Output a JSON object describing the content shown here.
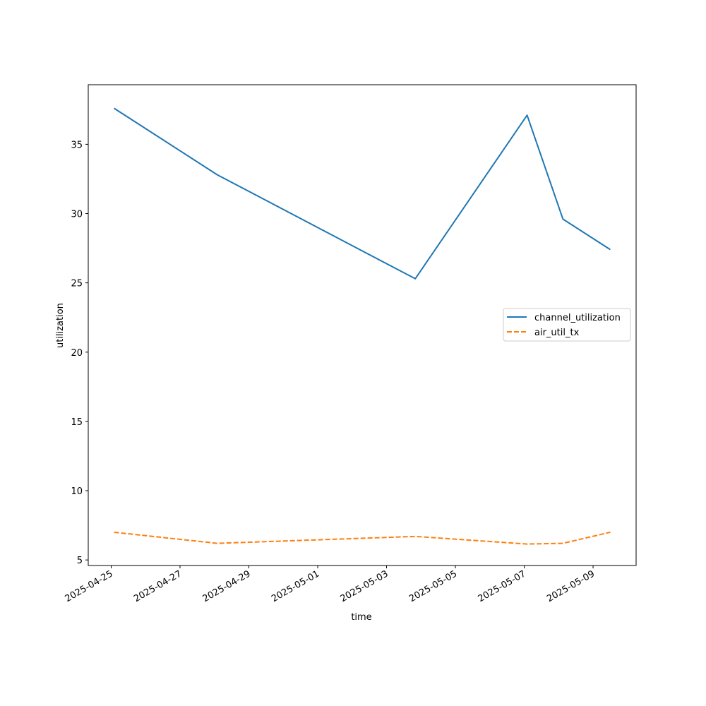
{
  "chart_data": {
    "type": "line",
    "xlabel": "time",
    "ylabel": "utilization",
    "x_tick_labels": [
      "2025-04-25",
      "2025-04-27",
      "2025-04-29",
      "2025-05-01",
      "2025-05-03",
      "2025-05-05",
      "2025-05-07",
      "2025-05-09"
    ],
    "y_tick_labels": [
      "5",
      "10",
      "15",
      "20",
      "25",
      "30",
      "35"
    ],
    "y_ticks": [
      5,
      10,
      15,
      20,
      25,
      30,
      35
    ],
    "xlim": [
      "2025-04-24T08:00",
      "2025-05-10T06:00"
    ],
    "ylim": [
      4.6,
      39.3
    ],
    "legend_position": "center-right",
    "grid": false,
    "series": [
      {
        "name": "channel_utilization",
        "color": "#1f77b4",
        "dash": "solid",
        "x": [
          "2025-04-25T02:00",
          "2025-04-28T02:00",
          "2025-05-03T20:00",
          "2025-05-07T02:00",
          "2025-05-08T03:00",
          "2025-05-09T12:00"
        ],
        "y": [
          37.6,
          32.8,
          25.3,
          37.1,
          29.6,
          27.4
        ]
      },
      {
        "name": "air_util_tx",
        "color": "#ff7f0e",
        "dash": "dashed",
        "x": [
          "2025-04-25T02:00",
          "2025-04-28T02:00",
          "2025-05-03T20:00",
          "2025-05-07T02:00",
          "2025-05-08T03:00",
          "2025-05-09T12:00"
        ],
        "y": [
          7.0,
          6.2,
          6.7,
          6.15,
          6.2,
          7.0
        ]
      }
    ]
  }
}
